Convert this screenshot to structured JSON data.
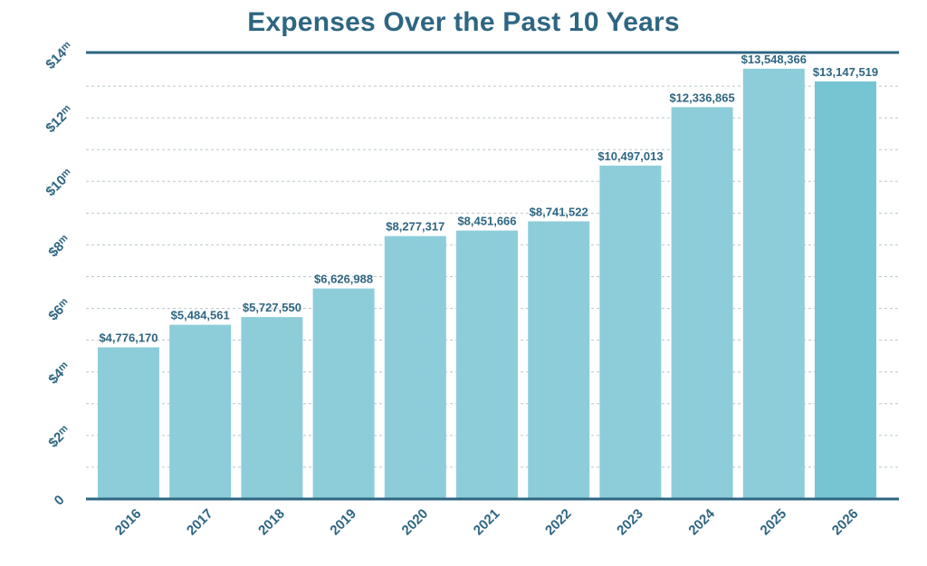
{
  "chart_data": {
    "type": "bar",
    "title": "Expenses Over the Past 10 Years",
    "categories": [
      "2016",
      "2017",
      "2018",
      "2019",
      "2020",
      "2021",
      "2022",
      "2023",
      "2024",
      "2025",
      "2026"
    ],
    "values": [
      4776170,
      5484561,
      5727550,
      6626988,
      8277317,
      8451666,
      8741522,
      10497013,
      12336865,
      13548366,
      13147519
    ],
    "data_labels": [
      "$4,776,170",
      "$5,484,561",
      "$5,727,550",
      "$6,626,988",
      "$8,277,317",
      "$8,451,666",
      "$8,741,522",
      "$10,497,013",
      "$12,336,865",
      "$13,548,366",
      "$13,147,519"
    ],
    "y_ticks": [
      {
        "value": 0,
        "label": "0",
        "unit": ""
      },
      {
        "value": 2000000,
        "label": "$2",
        "unit": "m"
      },
      {
        "value": 4000000,
        "label": "$4",
        "unit": "m"
      },
      {
        "value": 6000000,
        "label": "$6",
        "unit": "m"
      },
      {
        "value": 8000000,
        "label": "$8",
        "unit": "m"
      },
      {
        "value": 10000000,
        "label": "$10",
        "unit": "m"
      },
      {
        "value": 12000000,
        "label": "$12",
        "unit": "m"
      },
      {
        "value": 14000000,
        "label": "$14",
        "unit": "m"
      }
    ],
    "ylim": [
      0,
      14000000
    ],
    "xlabel": "",
    "ylabel": "",
    "grid": true,
    "colors": {
      "bar": "#8dcdd9",
      "highlight_bar": "#76c5d2",
      "highlight_label": "#7cc8d6",
      "text": "#2e6682",
      "axis": "#2e6682",
      "grid": "#b7c7d0"
    },
    "highlight_category": "2026"
  }
}
